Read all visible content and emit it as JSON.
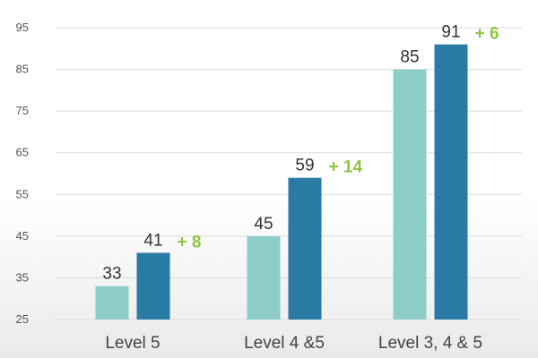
{
  "colors": {
    "series_light": "#8ccdc9",
    "series_dark": "#2a7aa6",
    "delta": "#8cc63f",
    "grid": "#dcdcdc"
  },
  "chart_data": {
    "type": "bar",
    "categories": [
      "Level 5",
      "Level 4 &5",
      "Level 3, 4 & 5"
    ],
    "series": [
      {
        "values": [
          33,
          45,
          85
        ]
      },
      {
        "values": [
          41,
          59,
          91
        ]
      }
    ],
    "value_labels": [
      [
        "33",
        "45",
        "85"
      ],
      [
        "41",
        "59",
        "91"
      ]
    ],
    "annotations": [
      "+ 8",
      "+ 14",
      "+ 6"
    ],
    "yticks": [
      25,
      35,
      45,
      55,
      65,
      75,
      85,
      95
    ],
    "ylim": [
      25,
      95
    ],
    "grid": true,
    "legend": "none",
    "title": "",
    "xlabel": "",
    "ylabel": ""
  }
}
